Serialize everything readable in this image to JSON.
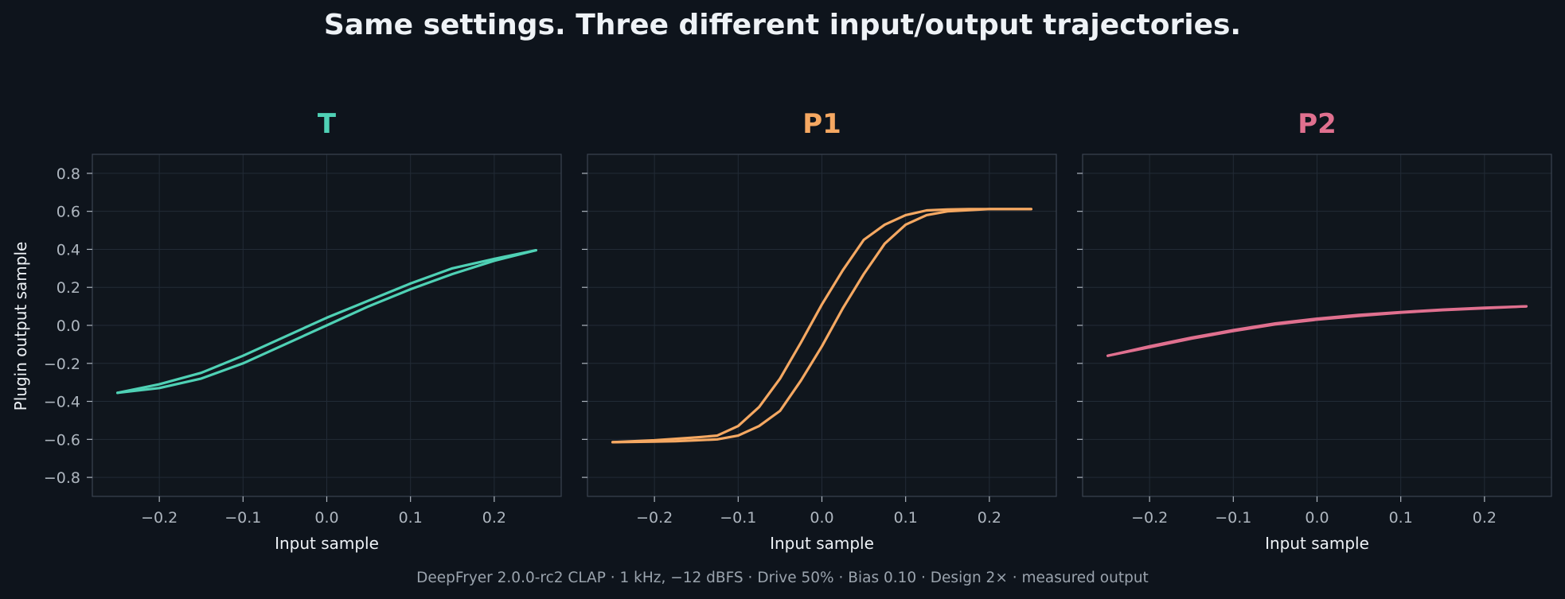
{
  "title": "Same settings. Three different input/output trajectories.",
  "footer": "DeepFryer 2.0.0-rc2 CLAP · 1 kHz, −12 dBFS · Drive 50% · Bias 0.10 · Design 2× · measured output",
  "ylabel": "Plugin output sample",
  "colors": {
    "background": "#0e141c",
    "plot_bg": "#10161d",
    "grid": "#222b36",
    "spine": "#3b4450",
    "text": "#eef2f6",
    "tick_text": "#aeb6bf"
  },
  "chart_data": [
    {
      "type": "line",
      "panel_title": "T",
      "color": "#4fd1b5",
      "xlabel": "Input sample",
      "ylabel": "Plugin output sample",
      "xlim": [
        -0.28,
        0.28
      ],
      "ylim": [
        -0.9,
        0.9
      ],
      "xticks": [
        -0.2,
        -0.1,
        0.0,
        0.1,
        0.2
      ],
      "xtick_labels": [
        "−0.2",
        "−0.1",
        "0.0",
        "0.1",
        "0.2"
      ],
      "yticks": [
        0.8,
        0.6,
        0.4,
        0.2,
        0.0,
        -0.2,
        -0.4,
        -0.6,
        -0.8
      ],
      "ytick_labels": [
        "0.8",
        "0.6",
        "0.4",
        "0.2",
        "0.0",
        "−0.2",
        "−0.4",
        "−0.6",
        "−0.8"
      ],
      "grid": true,
      "series": [
        {
          "x": [
            -0.25,
            -0.2,
            -0.15,
            -0.1,
            -0.05,
            0.0,
            0.05,
            0.1,
            0.15,
            0.2,
            0.25
          ],
          "y": [
            -0.355,
            -0.33,
            -0.28,
            -0.2,
            -0.1,
            0.0,
            0.1,
            0.19,
            0.27,
            0.34,
            0.395
          ]
        },
        {
          "x": [
            0.25,
            0.2,
            0.15,
            0.1,
            0.05,
            0.0,
            -0.05,
            -0.1,
            -0.15,
            -0.2,
            -0.25
          ],
          "y": [
            0.395,
            0.35,
            0.3,
            0.22,
            0.13,
            0.04,
            -0.06,
            -0.16,
            -0.25,
            -0.31,
            -0.355
          ]
        }
      ]
    },
    {
      "type": "line",
      "panel_title": "P1",
      "color": "#f5a862",
      "xlabel": "Input sample",
      "xlim": [
        -0.28,
        0.28
      ],
      "ylim": [
        -0.9,
        0.9
      ],
      "xticks": [
        -0.2,
        -0.1,
        0.0,
        0.1,
        0.2
      ],
      "xtick_labels": [
        "−0.2",
        "−0.1",
        "0.0",
        "0.1",
        "0.2"
      ],
      "yticks": [
        0.8,
        0.6,
        0.4,
        0.2,
        0.0,
        -0.2,
        -0.4,
        -0.6,
        -0.8
      ],
      "grid": true,
      "series": [
        {
          "x": [
            -0.25,
            -0.2,
            -0.15,
            -0.125,
            -0.1,
            -0.075,
            -0.05,
            -0.025,
            0.0,
            0.025,
            0.05,
            0.075,
            0.1,
            0.125,
            0.15,
            0.175,
            0.2,
            0.25
          ],
          "y": [
            -0.615,
            -0.605,
            -0.59,
            -0.58,
            -0.53,
            -0.43,
            -0.28,
            -0.09,
            0.11,
            0.29,
            0.45,
            0.53,
            0.58,
            0.605,
            0.61,
            0.612,
            0.612,
            0.612
          ]
        },
        {
          "x": [
            0.25,
            0.2,
            0.15,
            0.125,
            0.1,
            0.075,
            0.05,
            0.025,
            0.0,
            -0.025,
            -0.05,
            -0.075,
            -0.1,
            -0.125,
            -0.15,
            -0.175,
            -0.2,
            -0.25
          ],
          "y": [
            0.612,
            0.612,
            0.6,
            0.58,
            0.53,
            0.43,
            0.27,
            0.09,
            -0.11,
            -0.29,
            -0.45,
            -0.53,
            -0.58,
            -0.6,
            -0.605,
            -0.61,
            -0.612,
            -0.615
          ]
        }
      ]
    },
    {
      "type": "line",
      "panel_title": "P2",
      "color": "#e0708f",
      "xlabel": "Input sample",
      "xlim": [
        -0.28,
        0.28
      ],
      "ylim": [
        -0.9,
        0.9
      ],
      "xticks": [
        -0.2,
        -0.1,
        0.0,
        0.1,
        0.2
      ],
      "xtick_labels": [
        "−0.2",
        "−0.1",
        "0.0",
        "0.1",
        "0.2"
      ],
      "yticks": [
        0.8,
        0.6,
        0.4,
        0.2,
        0.0,
        -0.2,
        -0.4,
        -0.6,
        -0.8
      ],
      "grid": true,
      "series": [
        {
          "x": [
            -0.25,
            -0.2,
            -0.15,
            -0.1,
            -0.05,
            0.0,
            0.05,
            0.1,
            0.15,
            0.2,
            0.25
          ],
          "y": [
            -0.16,
            -0.11,
            -0.065,
            -0.025,
            0.01,
            0.035,
            0.055,
            0.07,
            0.083,
            0.093,
            0.1
          ]
        },
        {
          "x": [
            0.25,
            0.2,
            0.15,
            0.1,
            0.05,
            0.0,
            -0.05,
            -0.1,
            -0.15,
            -0.2,
            -0.25
          ],
          "y": [
            0.1,
            0.09,
            0.08,
            0.067,
            0.05,
            0.03,
            0.005,
            -0.03,
            -0.07,
            -0.115,
            -0.16
          ]
        }
      ]
    }
  ]
}
